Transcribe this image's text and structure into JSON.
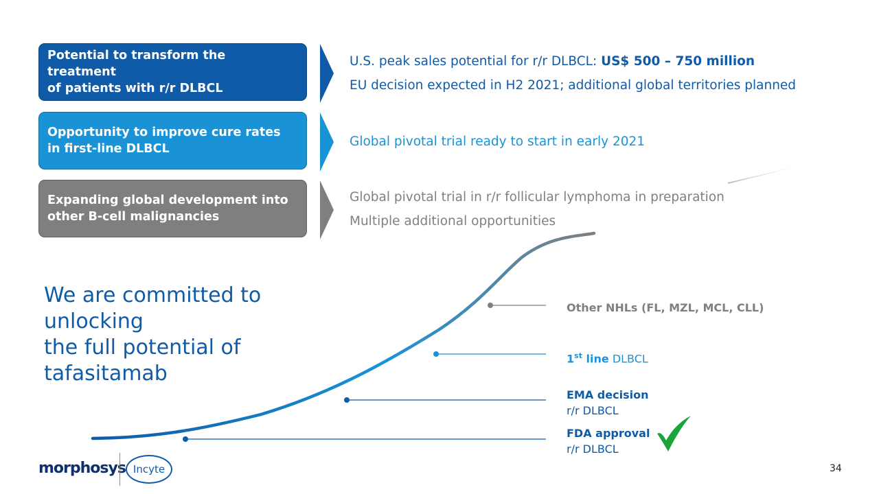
{
  "rows": [
    {
      "box_text": "Potential to transform the treatment\nof patients with r/r DLBCL",
      "line1_prefix": "U.S. peak sales potential for r/r DLBCL: ",
      "line1_bold": "US$ 500 – 750 million",
      "line2": "EU decision expected in H2 2021; additional global territories planned"
    },
    {
      "box_text": "Opportunity to improve cure rates\nin first-line DLBCL",
      "line1": "Global pivotal trial ready to start in early 2021"
    },
    {
      "box_text": "Expanding global development into\nother B-cell malignancies",
      "line1": "Global pivotal trial in r/r follicular lymphoma in preparation",
      "line2": "Multiple additional opportunities"
    }
  ],
  "headline": "We are committed to unlocking\nthe full potential of\ntafasitamab",
  "milestones": [
    {
      "title": "Other NHLs (FL, MZL, MCL, CLL)"
    },
    {
      "title_sup_base": "1",
      "title_sup": "st",
      "title_bold": " line",
      "title_rest": " DLBCL"
    },
    {
      "title": "EMA decision",
      "subtitle": "r/r DLBCL"
    },
    {
      "title": "FDA approval",
      "subtitle": "r/r DLBCL",
      "check_icon": "checkmark-icon"
    }
  ],
  "footer": {
    "logo_morphosys": "morphosys",
    "logo_incyte": "Incyte",
    "page_number": "34"
  },
  "colors": {
    "dark_blue": "#0f5ba8",
    "light_blue": "#1a93d6",
    "grey": "#7f7f7f",
    "check_green": "#1aa53a"
  }
}
